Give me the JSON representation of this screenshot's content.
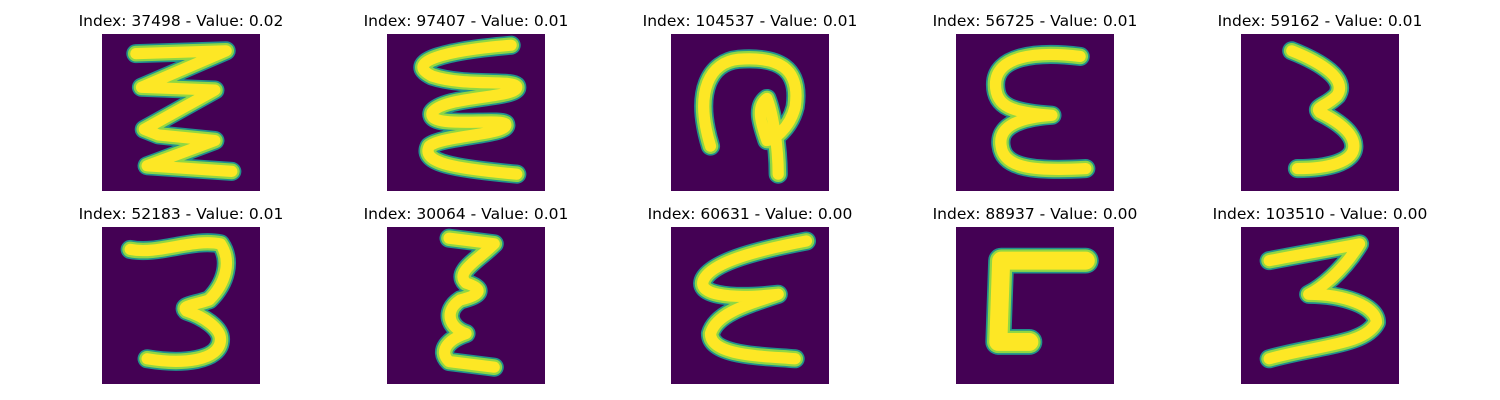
{
  "figure": {
    "panels": [
      {
        "title": "Index: 37498 - Value: 0.02",
        "glyph": "zigzag-three-turns"
      },
      {
        "title": "Index: 97407 - Value: 0.01",
        "glyph": "wave-four-turns"
      },
      {
        "title": "Index: 104537 - Value: 0.01",
        "glyph": "hook-loop"
      },
      {
        "title": "Index: 56725 - Value: 0.01",
        "glyph": "epsilon-thick-top"
      },
      {
        "title": "Index: 59162 - Value: 0.01",
        "glyph": "thin-three"
      },
      {
        "title": "Index: 52183 - Value: 0.01",
        "glyph": "three"
      },
      {
        "title": "Index: 30064 - Value: 0.01",
        "glyph": "narrow-epsilon"
      },
      {
        "title": "Index: 60631 - Value: 0.00",
        "glyph": "slanted-epsilon"
      },
      {
        "title": "Index: 88937 - Value: 0.00",
        "glyph": "thick-corner"
      },
      {
        "title": "Index: 103510 - Value: 0.00",
        "glyph": "zigzag-three"
      }
    ],
    "colors": {
      "background": "#440154",
      "stroke_edge": "#21918c",
      "stroke_mid": "#90d743",
      "stroke_core": "#fde725"
    }
  }
}
